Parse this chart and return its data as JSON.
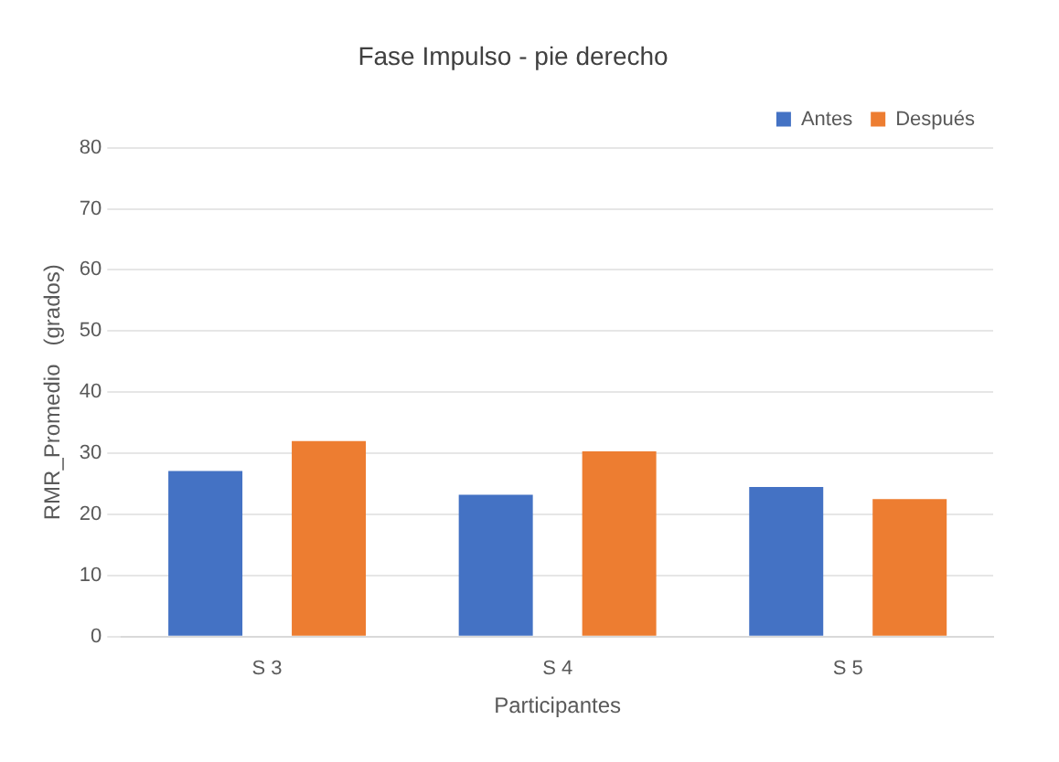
{
  "chart_data": {
    "type": "bar",
    "title": "Fase Impulso - pie derecho",
    "xlabel": "Participantes",
    "ylabel": "RMR_Promedio   (grados)",
    "categories": [
      "S 3",
      "S 4",
      "S 5"
    ],
    "series": [
      {
        "name": "Antes",
        "color": "#4472c4",
        "values": [
          27.1,
          23.2,
          24.5
        ]
      },
      {
        "name": "Después",
        "color": "#ed7d31",
        "values": [
          32,
          30.3,
          22.5
        ]
      }
    ],
    "ylim": [
      0,
      80
    ],
    "yticks": [
      0,
      10,
      20,
      30,
      40,
      50,
      60,
      70,
      80
    ],
    "grid": "y",
    "legend": "top right"
  }
}
